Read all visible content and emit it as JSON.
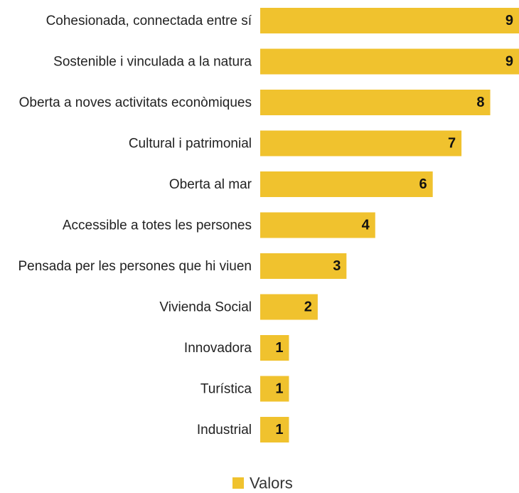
{
  "chart_data": {
    "type": "bar",
    "orientation": "horizontal",
    "categories": [
      "Cohesionada, connectada entre sí",
      "Sostenible i vinculada a la natura",
      "Oberta a noves activitats econòmiques",
      "Cultural i patrimonial",
      "Oberta al mar",
      "Accessible a totes les persones",
      "Pensada per les persones que hi viuen",
      "Vivienda Social",
      "Innovadora",
      "Turística",
      "Industrial"
    ],
    "series": [
      {
        "name": "Valors",
        "values": [
          9,
          9,
          8,
          7,
          6,
          4,
          3,
          2,
          1,
          1,
          1
        ]
      }
    ],
    "xlim": [
      0,
      9
    ],
    "grid": false,
    "data_labels": true,
    "legend_position": "bottom",
    "bar_color": "#f0c22e"
  }
}
